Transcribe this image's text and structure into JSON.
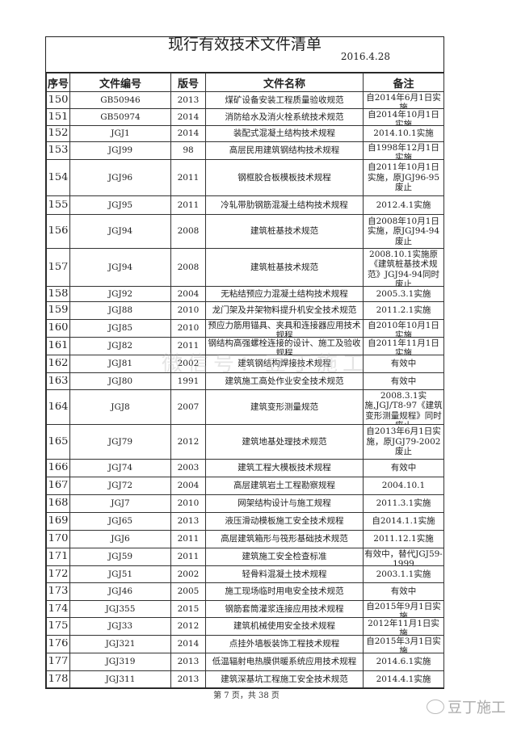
{
  "document": {
    "title": "现行有效技术文件清单",
    "date": "2016.4.28",
    "columns": [
      "序号",
      "文件编号",
      "版号",
      "文件名称",
      "备注"
    ],
    "rows": [
      {
        "seq": "150",
        "code": "GB50946",
        "ver": "2013",
        "name": "煤矿设备安装工程质量验收规范",
        "note": "自2014年6月1日实施"
      },
      {
        "seq": "151",
        "code": "GB50974",
        "ver": "2014",
        "name": "消防给水及消火栓系统技术规范",
        "note": "自2014年10月1日实施"
      },
      {
        "seq": "152",
        "code": "JGJ1",
        "ver": "2014",
        "name": "装配式混凝土结构技术规程",
        "note": "2014.10.1实施"
      },
      {
        "seq": "153",
        "code": "JGJ99",
        "ver": "98",
        "name": "高层民用建筑钢结构技术规程",
        "note": "自1998年12月1日实施"
      },
      {
        "seq": "154",
        "code": "JGJ96",
        "ver": "2011",
        "name": "钢框胶合板模板技术规程",
        "note": "自2011年10月1日实施，原JGJ96-95废止"
      },
      {
        "seq": "155",
        "code": "JGJ95",
        "ver": "2011",
        "name": "冷轧带肋钢筋混凝土结构技术规程",
        "note": "2012.4.1实施"
      },
      {
        "seq": "156",
        "code": "JGJ94",
        "ver": "2008",
        "name": "建筑桩基技术规范",
        "note": "自2008年10月1日实施，原JGJ94-94废止"
      },
      {
        "seq": "157",
        "code": "JGJ94",
        "ver": "2008",
        "name": "建筑桩基技术规范",
        "note": "2008.10.1实施原《建筑桩基技术规范》JGJ94-94同时废止"
      },
      {
        "seq": "158",
        "code": "JGJ92",
        "ver": "2004",
        "name": "无粘结预应力混凝土结构技术规程",
        "note": "2005.3.1实施"
      },
      {
        "seq": "159",
        "code": "JGJ88",
        "ver": "2010",
        "name": "龙门架及井架物料提升机安全技术规范",
        "note": "2011.2.1实施"
      },
      {
        "seq": "160",
        "code": "JGJ85",
        "ver": "2010",
        "name": "预应力筋用锚具、夹具和连接器应用技术规程",
        "note": "自2010年10月1日实施"
      },
      {
        "seq": "161",
        "code": "JGJ82",
        "ver": "2011",
        "name": "钢结构高强螺栓连接的设计、施工及验收规程",
        "note": "自2011年11月1日实施"
      },
      {
        "seq": "162",
        "code": "JGJ81",
        "ver": "2002",
        "name": "建筑钢结构焊接技术规程",
        "note": "有效中"
      },
      {
        "seq": "163",
        "code": "JGJ80",
        "ver": "1991",
        "name": "建筑施工高处作业安全技术规范",
        "note": "有效中"
      },
      {
        "seq": "164",
        "code": "JGJ8",
        "ver": "2007",
        "name": "建筑变形测量规范",
        "note": "2008.3.1实施,JGJ/T8-97《建筑变形测量规程》同时废止"
      },
      {
        "seq": "165",
        "code": "JGJ79",
        "ver": "2012",
        "name": "建筑地基处理技术规范",
        "note": "自2013年6月1日实施，原JGJ79-2002废止"
      },
      {
        "seq": "166",
        "code": "JGJ74",
        "ver": "2003",
        "name": "建筑工程大模板技术规程",
        "note": "有效中"
      },
      {
        "seq": "167",
        "code": "JGJ72",
        "ver": "2004",
        "name": "高层建筑岩土工程勘察规程",
        "note": "2004.10.1"
      },
      {
        "seq": "168",
        "code": "JGJ7",
        "ver": "2010",
        "name": "网架结构设计与施工规程",
        "note": "2011.3.1实施"
      },
      {
        "seq": "169",
        "code": "JGJ65",
        "ver": "2013",
        "name": "液压滑动模板施工安全技术规程",
        "note": "自2014.1.1实施"
      },
      {
        "seq": "170",
        "code": "JGJ6",
        "ver": "2011",
        "name": "高层建筑箱形与筏形基础技术规范",
        "note": "2011.12.1实施"
      },
      {
        "seq": "171",
        "code": "JGJ59",
        "ver": "2011",
        "name": "建筑施工安全检查标准",
        "note": "有效中，替代JGJ59-1999"
      },
      {
        "seq": "172",
        "code": "JGJ51",
        "ver": "2002",
        "name": "轻骨料混凝土技术规程",
        "note": "2003.1.1实施"
      },
      {
        "seq": "173",
        "code": "JGJ46",
        "ver": "2005",
        "name": "施工现场临时用电安全技术规范",
        "note": "有效中"
      },
      {
        "seq": "174",
        "code": "JGJ355",
        "ver": "2015",
        "name": "钢筋套筒灌浆连接应用技术规程",
        "note": "自2015年9月1日实施"
      },
      {
        "seq": "175",
        "code": "JGJ33",
        "ver": "2012",
        "name": "建筑机械使用安全技术规程",
        "note": "2012年11月1日实施"
      },
      {
        "seq": "176",
        "code": "JGJ321",
        "ver": "2014",
        "name": "点挂外墙板装饰工程技术规程",
        "note": "自2015年3月1日实施"
      },
      {
        "seq": "177",
        "code": "JGJ319",
        "ver": "2013",
        "name": "低温辐射电热膜供暖系统应用技术规程",
        "note": "2014.6.1实施"
      },
      {
        "seq": "178",
        "code": "JGJ311",
        "ver": "2013",
        "name": "建筑深基坑工程施工安全技术规范",
        "note": "2014.4.1实施"
      }
    ],
    "footer": "第 7 页，共 38 页"
  },
  "watermark": {
    "center": "微信号：豆丁施工",
    "corner": "豆丁施工",
    "icon": "wechat-icon"
  }
}
